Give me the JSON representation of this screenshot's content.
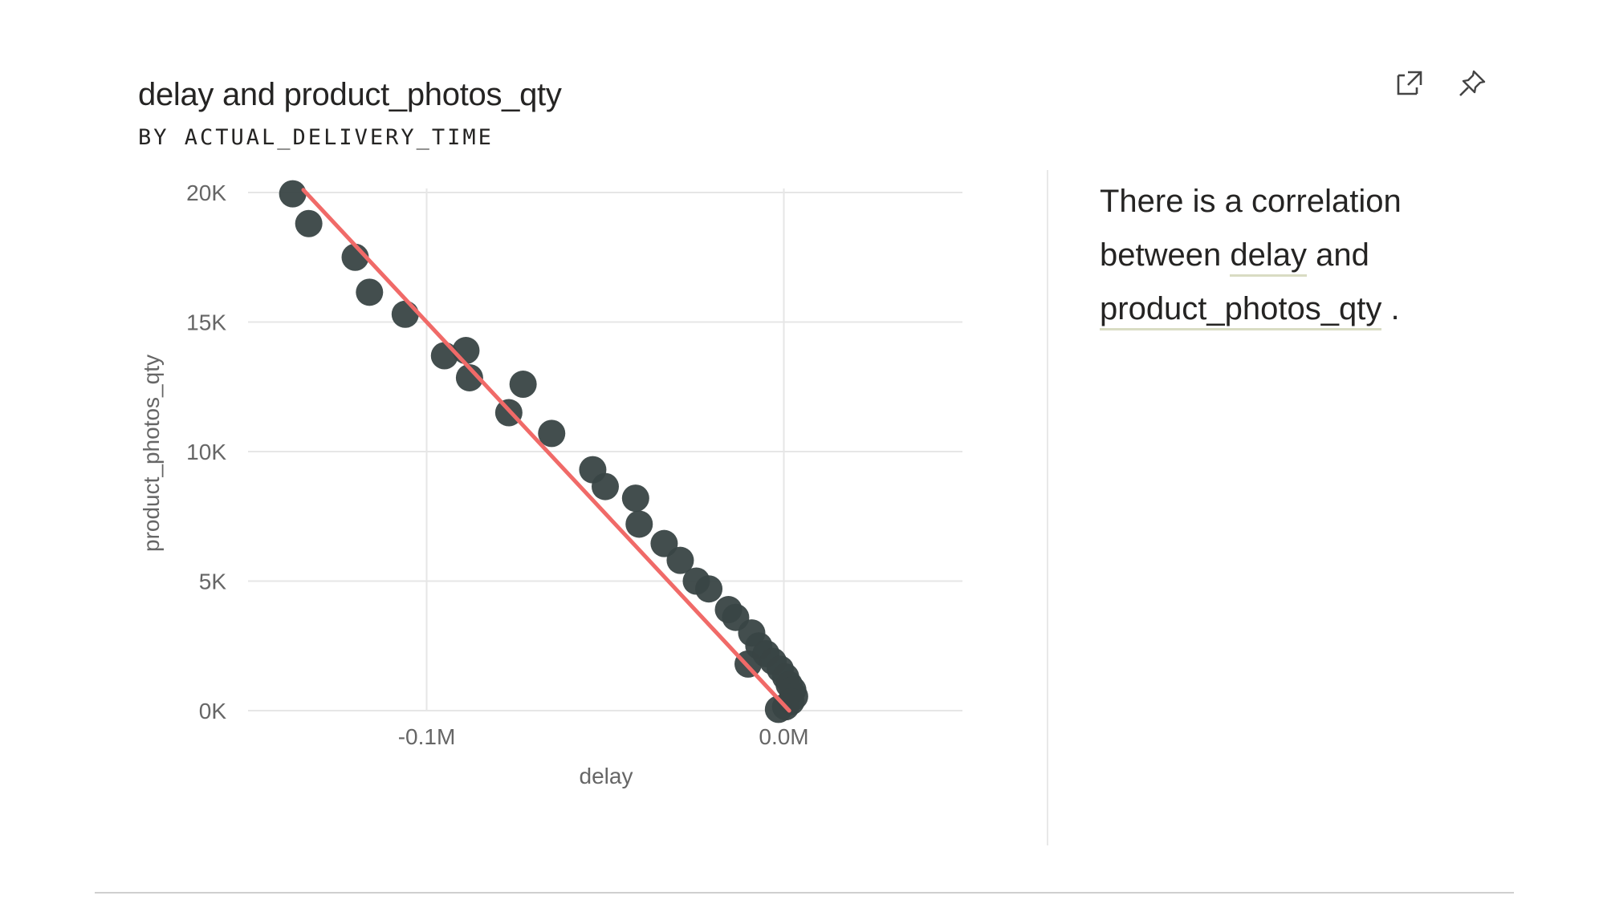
{
  "header": {
    "title": "delay and product_photos_qty",
    "subtitle": "BY ACTUAL_DELIVERY_TIME"
  },
  "toolbar": {
    "focus_icon": "focus-mode-icon",
    "pin_icon": "pin-icon"
  },
  "insight": {
    "prefix": "There is a correlation between ",
    "term1": "delay",
    "middle": " and ",
    "term2": "product_photos_qty",
    "suffix": " ."
  },
  "colors": {
    "points": "#394444",
    "trend": "#f06a68",
    "grid": "#e6e6e6",
    "axis_text": "#666666"
  },
  "chart_data": {
    "type": "scatter",
    "xlabel": "delay",
    "ylabel": "product_photos_qty",
    "xlim": [
      -0.15,
      0.05
    ],
    "ylim": [
      0,
      20000
    ],
    "x_unit": "M",
    "x_ticks": [
      -0.1,
      0.0
    ],
    "x_tick_labels": [
      "-0.1M",
      "0.0M"
    ],
    "y_ticks": [
      0,
      5000,
      10000,
      15000,
      20000
    ],
    "y_tick_labels": [
      "0K",
      "5K",
      "10K",
      "15K",
      "20K"
    ],
    "grid": true,
    "points": [
      {
        "x": -0.1375,
        "y": 19950
      },
      {
        "x": -0.133,
        "y": 18800
      },
      {
        "x": -0.12,
        "y": 17500
      },
      {
        "x": -0.116,
        "y": 16150
      },
      {
        "x": -0.106,
        "y": 15300
      },
      {
        "x": -0.089,
        "y": 13900
      },
      {
        "x": -0.095,
        "y": 13700
      },
      {
        "x": -0.088,
        "y": 12850
      },
      {
        "x": -0.073,
        "y": 12600
      },
      {
        "x": -0.077,
        "y": 11500
      },
      {
        "x": -0.065,
        "y": 10700
      },
      {
        "x": -0.0535,
        "y": 9300
      },
      {
        "x": -0.05,
        "y": 8650
      },
      {
        "x": -0.0415,
        "y": 8200
      },
      {
        "x": -0.0405,
        "y": 7200
      },
      {
        "x": -0.0335,
        "y": 6450
      },
      {
        "x": -0.029,
        "y": 5800
      },
      {
        "x": -0.0245,
        "y": 5000
      },
      {
        "x": -0.021,
        "y": 4700
      },
      {
        "x": -0.0155,
        "y": 3900
      },
      {
        "x": -0.0135,
        "y": 3600
      },
      {
        "x": -0.009,
        "y": 3000
      },
      {
        "x": -0.01,
        "y": 1800
      },
      {
        "x": -0.007,
        "y": 2500
      },
      {
        "x": -0.005,
        "y": 2200
      },
      {
        "x": -0.003,
        "y": 1900
      },
      {
        "x": -0.001,
        "y": 1600
      },
      {
        "x": 0.0005,
        "y": 1300
      },
      {
        "x": 0.0015,
        "y": 1000
      },
      {
        "x": 0.0025,
        "y": 800
      },
      {
        "x": 0.003,
        "y": 550
      },
      {
        "x": 0.002,
        "y": 350
      },
      {
        "x": 0.0005,
        "y": 150
      },
      {
        "x": -0.0015,
        "y": 50
      }
    ],
    "trend_line": {
      "x": [
        -0.1345,
        0.0015
      ],
      "y": [
        20100,
        0
      ]
    }
  }
}
